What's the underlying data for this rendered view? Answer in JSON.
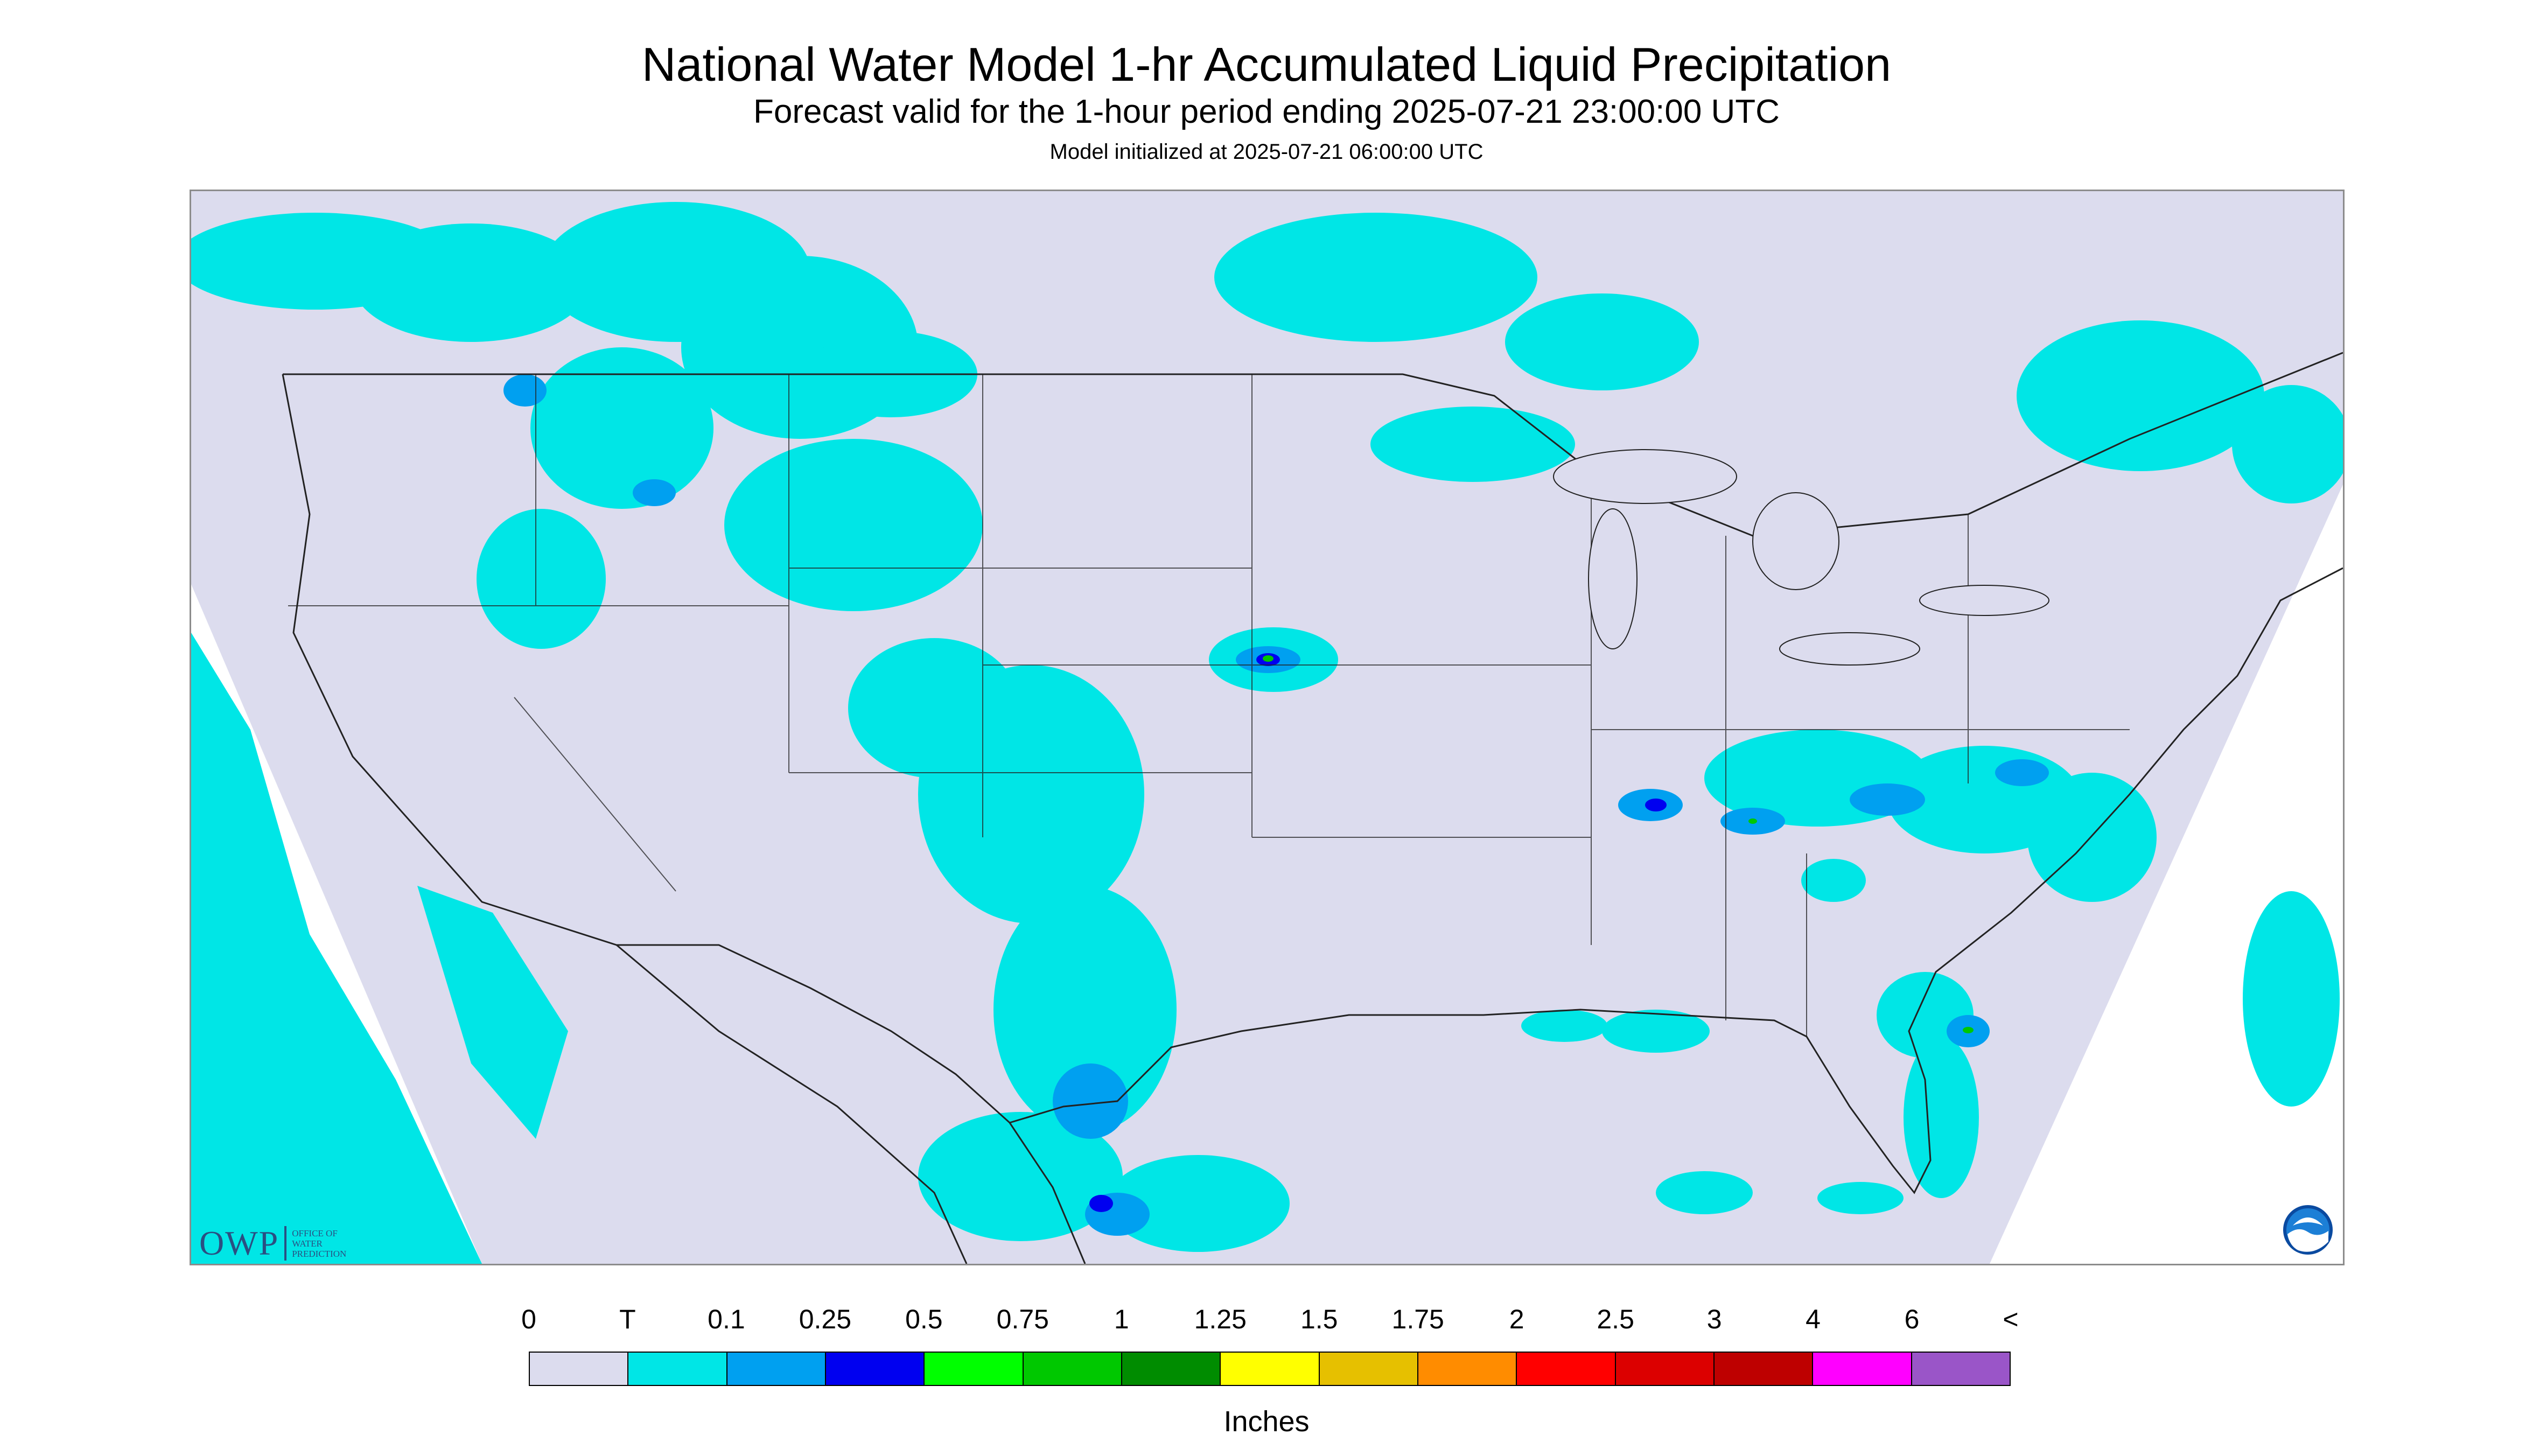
{
  "header": {
    "title": "National Water Model 1-hr Accumulated Liquid Precipitation",
    "subtitle": "Forecast valid for the 1-hour period ending 2025-07-21 23:00:00 UTC",
    "init": "Model initialized at 2025-07-21 06:00:00 UTC"
  },
  "map": {
    "background_color": "#dcdcee",
    "outside_color": "#ffffff",
    "border_color": "#222222",
    "base_icon": "conus-map-icon"
  },
  "branding": {
    "owp_abbr": "OWP",
    "owp_line1": "OFFICE OF",
    "owp_line2": "WATER",
    "owp_line3": "PREDICTION",
    "noaa_icon": "noaa-logo-icon"
  },
  "legend": {
    "ticks": [
      "0",
      "T",
      "0.1",
      "0.25",
      "0.5",
      "0.75",
      "1",
      "1.25",
      "1.5",
      "1.75",
      "2",
      "2.5",
      "3",
      "4",
      "6",
      "<"
    ],
    "colors": [
      "#dcdcee",
      "#00e6e6",
      "#00a0f0",
      "#0000f0",
      "#00ff00",
      "#00c800",
      "#008c00",
      "#ffff00",
      "#e6c000",
      "#ff8c00",
      "#ff0000",
      "#dc0000",
      "#be0000",
      "#ff00ff",
      "#9a55c8"
    ],
    "units": "Inches"
  }
}
